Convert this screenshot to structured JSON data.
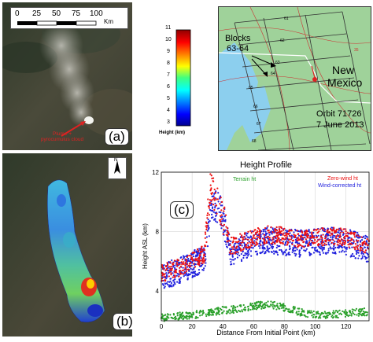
{
  "panel_a": {
    "scale_ticks": [
      "0",
      "25",
      "50",
      "75",
      "100"
    ],
    "scale_unit": "Km",
    "annotation": "Plume + pyrocumulus cloud",
    "label": "(a)"
  },
  "colorbar": {
    "ticks": [
      "11",
      "10",
      "9",
      "8",
      "7",
      "6",
      "5",
      "4",
      "3"
    ],
    "title": "Height (km)"
  },
  "map": {
    "blocks_label_1": "Blocks",
    "blocks_label_2": "63-64",
    "region_1": "New",
    "region_2": "Mexico",
    "orbit": "Orbit 71726",
    "date": "7 June 2013",
    "block_numbers": [
      "61",
      "62",
      "63",
      "64",
      "65",
      "66",
      "67",
      "68"
    ],
    "road_number": "35",
    "colors": {
      "land": "#9fd29a",
      "water": "#8ccfee",
      "roads": "#cc3333",
      "grid": "#333333"
    }
  },
  "panel_b": {
    "north": "N",
    "label": "(b)"
  },
  "panel_c": {
    "label": "(c)"
  },
  "chart_data": {
    "type": "scatter",
    "title": "Height Profile",
    "xlabel": "Distance From Initial Point (km)",
    "ylabel": "Height ASL (km)",
    "xlim": [
      0,
      135
    ],
    "ylim": [
      2,
      12
    ],
    "x_ticks": [
      "0",
      "20",
      "40",
      "60",
      "80",
      "100",
      "120"
    ],
    "y_ticks": [
      "4",
      "8",
      "12"
    ],
    "grid": true,
    "legend_position": "top-right",
    "series": [
      {
        "name": "Terrain ht",
        "color": "#2aa02a",
        "x": [
          0,
          10,
          20,
          30,
          40,
          50,
          60,
          70,
          80,
          90,
          100,
          110,
          120,
          130,
          135
        ],
        "y": [
          2.2,
          2.3,
          2.4,
          2.5,
          2.7,
          2.8,
          3.0,
          3.1,
          2.9,
          2.6,
          2.4,
          2.4,
          2.5,
          2.6,
          2.6
        ]
      },
      {
        "name": "Zero-wind ht",
        "color": "#ee1111",
        "x": [
          0,
          10,
          20,
          28,
          32,
          36,
          40,
          45,
          50,
          60,
          70,
          80,
          90,
          100,
          110,
          120,
          130,
          135
        ],
        "y": [
          5.2,
          5.5,
          6.0,
          6.5,
          11.0,
          10.2,
          9.0,
          7.0,
          7.2,
          7.6,
          7.8,
          7.7,
          7.5,
          7.6,
          7.7,
          7.6,
          7.2,
          7.0
        ]
      },
      {
        "name": "Wind-corrected ht",
        "color": "#2222dd",
        "x": [
          0,
          10,
          20,
          28,
          32,
          36,
          40,
          45,
          50,
          60,
          70,
          80,
          90,
          100,
          110,
          120,
          130,
          135
        ],
        "y": [
          5.0,
          5.3,
          5.8,
          6.2,
          9.5,
          9.8,
          9.0,
          6.6,
          6.8,
          7.2,
          7.4,
          7.3,
          7.2,
          7.3,
          7.4,
          7.3,
          7.0,
          6.8
        ]
      }
    ]
  }
}
